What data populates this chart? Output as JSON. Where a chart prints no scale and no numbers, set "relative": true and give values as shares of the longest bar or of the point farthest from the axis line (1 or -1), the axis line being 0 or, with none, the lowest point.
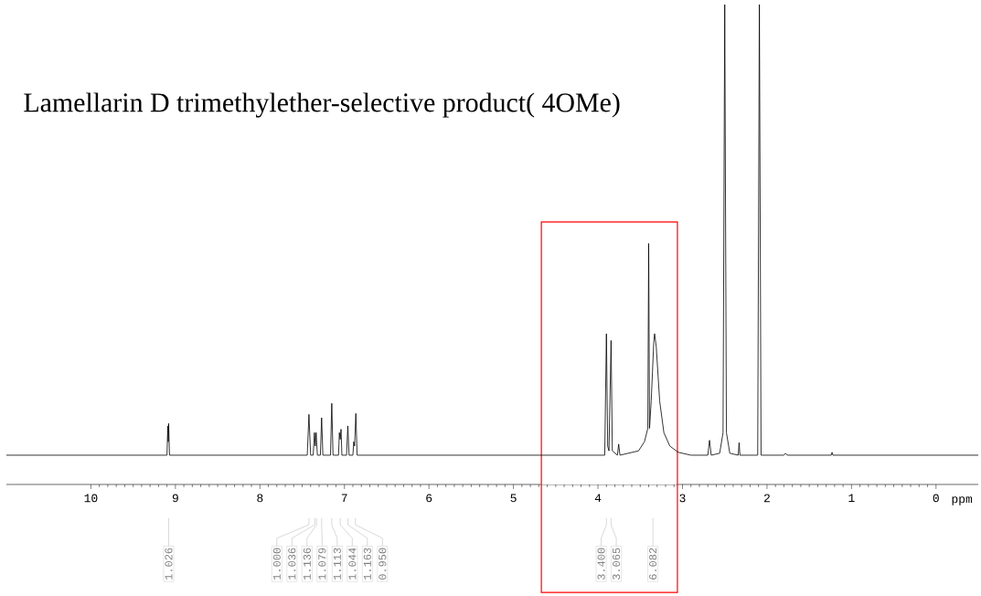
{
  "chart_data": {
    "type": "line",
    "relative": true,
    "title": "Lamellarin D trimethylether-selective product( 4OMe)",
    "xlabel": "ppm",
    "xlim": [
      11.0,
      -0.5
    ],
    "xticks": [
      10,
      9,
      8,
      7,
      6,
      5,
      4,
      3,
      2,
      1,
      0
    ],
    "series": [
      {
        "color": "#000000",
        "x": [
          11.0,
          9.1,
          9.09,
          9.085,
          9.08,
          9.07,
          7.44,
          7.42,
          7.4,
          7.37,
          7.355,
          7.345,
          7.335,
          7.32,
          7.285,
          7.27,
          7.255,
          7.165,
          7.15,
          7.135,
          7.07,
          7.06,
          7.05,
          7.04,
          7.03,
          6.975,
          6.96,
          6.945,
          6.9,
          6.89,
          6.88,
          6.865,
          6.85,
          3.92,
          3.9,
          3.885,
          3.87,
          3.845,
          3.83,
          3.77,
          3.755,
          3.74,
          3.52,
          3.45,
          3.41,
          3.4,
          3.39,
          3.37,
          3.34,
          3.33,
          3.31,
          3.27,
          3.22,
          3.15,
          3.05,
          2.9,
          2.7,
          2.68,
          2.66,
          2.56,
          2.52,
          2.5,
          2.48,
          2.44,
          2.34,
          2.33,
          2.32,
          2.11,
          2.09,
          2.07,
          1.8,
          1.78,
          1.76,
          1.24,
          1.23,
          1.22,
          -0.5
        ],
        "values": [
          0.061,
          0.061,
          0.122,
          0.089,
          0.127,
          0.061,
          0.061,
          0.146,
          0.061,
          0.061,
          0.108,
          0.08,
          0.108,
          0.061,
          0.061,
          0.139,
          0.061,
          0.061,
          0.169,
          0.061,
          0.061,
          0.108,
          0.094,
          0.115,
          0.061,
          0.061,
          0.122,
          0.061,
          0.061,
          0.089,
          0.08,
          0.148,
          0.061,
          0.061,
          0.314,
          0.08,
          0.07,
          0.3,
          0.07,
          0.061,
          0.084,
          0.061,
          0.07,
          0.089,
          0.117,
          0.502,
          0.117,
          0.174,
          0.296,
          0.314,
          0.286,
          0.174,
          0.108,
          0.08,
          0.067,
          0.061,
          0.061,
          0.092,
          0.061,
          0.065,
          0.108,
          1,
          0.108,
          0.065,
          0.061,
          0.087,
          0.061,
          0.061,
          1,
          0.061,
          0.061,
          0.065,
          0.061,
          0.061,
          0.067,
          0.061,
          0.061
        ]
      }
    ],
    "bands": [
      {
        "axis": "x",
        "from": 4.67,
        "to": 3.06
      }
    ],
    "annotations": [
      {
        "text": "1.026",
        "x": 9.08
      },
      {
        "text": "1.000",
        "x": 7.42
      },
      {
        "text": "1.036",
        "x": 7.35
      },
      {
        "text": "1.136",
        "x": 7.33
      },
      {
        "text": "1.079",
        "x": 7.27
      },
      {
        "text": "1.113",
        "x": 7.15
      },
      {
        "text": "1.044",
        "x": 7.05
      },
      {
        "text": "1.163",
        "x": 6.96
      },
      {
        "text": "0.950",
        "x": 6.87
      },
      {
        "text": "3.400",
        "x": 3.9
      },
      {
        "text": "3.065",
        "x": 3.845
      },
      {
        "text": "6.082",
        "x": 3.35
      }
    ]
  }
}
